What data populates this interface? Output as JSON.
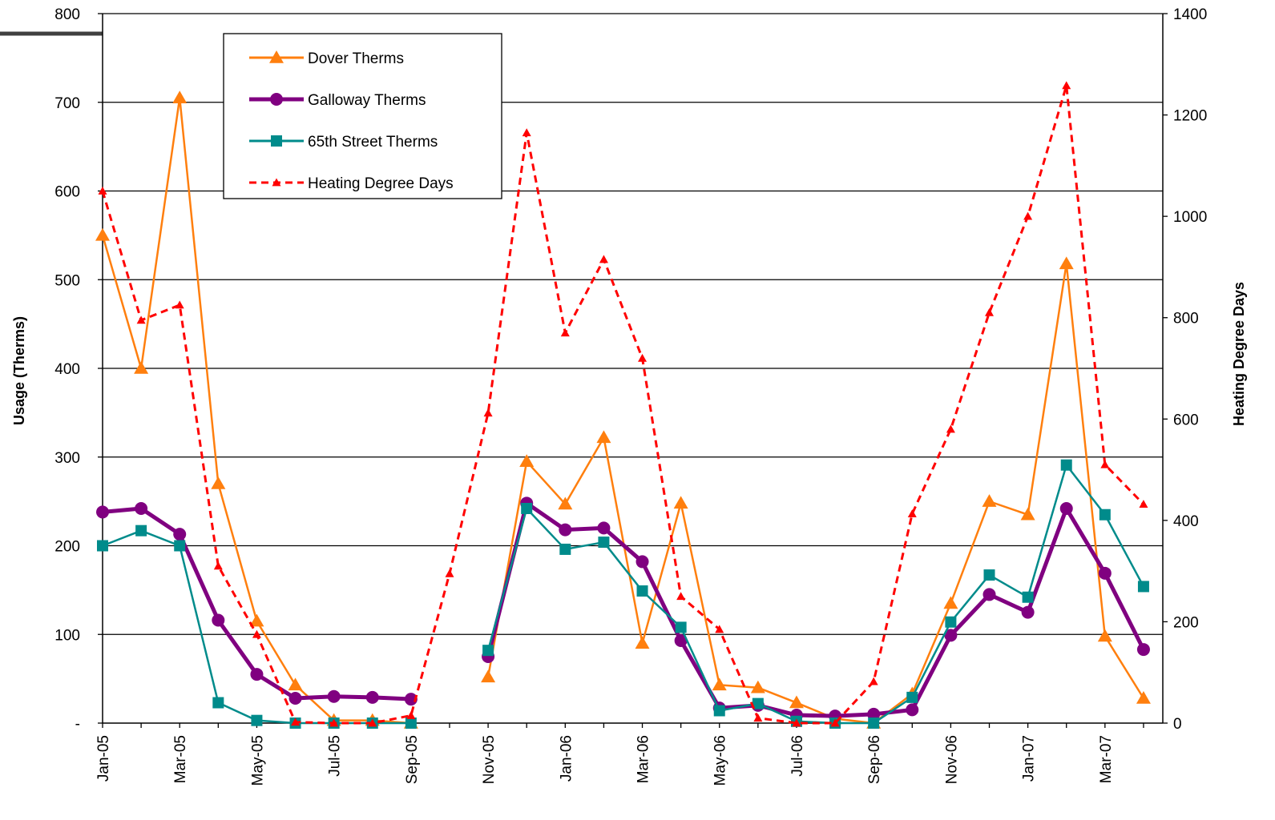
{
  "chart_data": {
    "type": "line",
    "categories": [
      "Jan-05",
      "Feb-05",
      "Mar-05",
      "Apr-05",
      "May-05",
      "Jun-05",
      "Jul-05",
      "Aug-05",
      "Sep-05",
      "Oct-05",
      "Nov-05",
      "Dec-05",
      "Jan-06",
      "Feb-06",
      "Mar-06",
      "Apr-06",
      "May-06",
      "Jun-06",
      "Jul-06",
      "Aug-06",
      "Sep-06",
      "Oct-06",
      "Nov-06",
      "Dec-06",
      "Jan-07",
      "Feb-07",
      "Mar-07",
      "Apr-07"
    ],
    "x_tick_labels": [
      "Jan-05",
      "Mar-05",
      "May-05",
      "Jul-05",
      "Sep-05",
      "Nov-05",
      "Jan-06",
      "Mar-06",
      "May-06",
      "Jul-06",
      "Sep-06",
      "Nov-06",
      "Jan-07",
      "Mar-07"
    ],
    "ylabel": "Usage (Therms)",
    "y2label": "Heating Degree Days",
    "ylim": [
      0,
      800
    ],
    "y2lim": [
      0,
      1400
    ],
    "y_ticks": [
      0,
      100,
      200,
      300,
      400,
      500,
      600,
      700,
      800
    ],
    "y_tick_labels": [
      "-",
      "100",
      "200",
      "300",
      "400",
      "500",
      "600",
      "700",
      "800"
    ],
    "y2_ticks": [
      0,
      200,
      400,
      600,
      800,
      1000,
      1200,
      1400
    ],
    "grid": true,
    "legend_position": "top-left",
    "series": [
      {
        "name": "Dover Therms",
        "axis": "left",
        "color": "#FF7F0E",
        "marker": "triangle",
        "line_style": "solid",
        "values": [
          550,
          400,
          705,
          270,
          115,
          43,
          3,
          3,
          0,
          null,
          52,
          295,
          247,
          322,
          90,
          248,
          43,
          40,
          23,
          5,
          0,
          33,
          135,
          250,
          235,
          518,
          98,
          28
        ]
      },
      {
        "name": "Galloway Therms",
        "axis": "left",
        "color": "#800080",
        "marker": "circle",
        "line_style": "solid",
        "values": [
          238,
          242,
          213,
          116,
          55,
          28,
          30,
          29,
          27,
          null,
          75,
          248,
          218,
          220,
          182,
          93,
          17,
          20,
          9,
          8,
          10,
          15,
          99,
          145,
          125,
          242,
          169,
          83
        ]
      },
      {
        "name": "65th Street Therms",
        "axis": "left",
        "color": "#008B8B",
        "marker": "square",
        "line_style": "solid",
        "values": [
          200,
          217,
          200,
          23,
          3,
          0,
          0,
          0,
          0,
          null,
          82,
          242,
          196,
          204,
          149,
          108,
          14,
          22,
          2,
          0,
          0,
          29,
          114,
          167,
          142,
          291,
          235,
          154
        ]
      },
      {
        "name": "Heating Degree Days",
        "axis": "right",
        "color": "#FF0000",
        "marker": "triangle-small",
        "line_style": "dashed",
        "values": [
          1050,
          795,
          825,
          310,
          175,
          2,
          0,
          0,
          15,
          295,
          612,
          1165,
          770,
          915,
          720,
          250,
          185,
          10,
          0,
          0,
          82,
          413,
          580,
          810,
          1000,
          1258,
          510,
          432
        ]
      }
    ]
  }
}
